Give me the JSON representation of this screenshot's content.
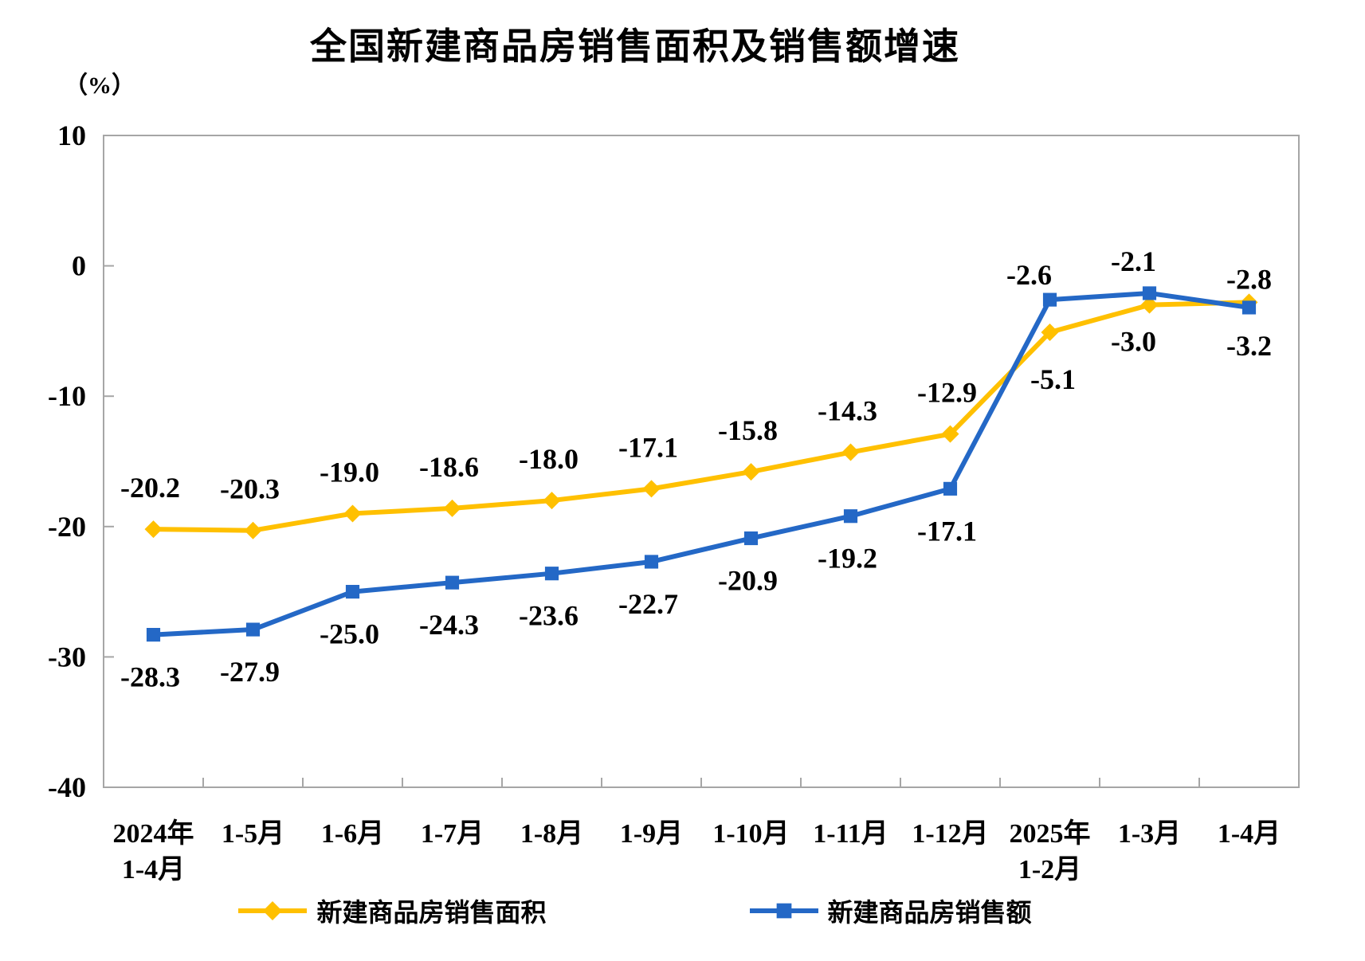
{
  "chart": {
    "title": "全国新建商品房销售面积及销售额增速",
    "y_axis_unit": "（%）"
  },
  "chart_data": {
    "type": "line",
    "title": "全国新建商品房销售面积及销售额增速",
    "ylabel": "（%）",
    "ylim": [
      -40,
      10
    ],
    "y_ticks": [
      10,
      0,
      -10,
      -20,
      -30,
      -40
    ],
    "grid": false,
    "legend_position": "bottom",
    "axis_color": "#A6A6A6",
    "label_color": "#000000",
    "categories": [
      "2024年\n1-4月",
      "1-5月",
      "1-6月",
      "1-7月",
      "1-8月",
      "1-9月",
      "1-10月",
      "1-11月",
      "1-12月",
      "2025年\n1-2月",
      "1-3月",
      "1-4月"
    ],
    "series": [
      {
        "name": "新建商品房销售面积",
        "color": "#FFC000",
        "marker": "diamond",
        "values": [
          -20.2,
          -20.3,
          -19.0,
          -18.6,
          -18.0,
          -17.1,
          -15.8,
          -14.3,
          -12.9,
          -5.1,
          -3.0,
          -2.8
        ],
        "labels": [
          "-20.2",
          "-20.3",
          "-19.0",
          "-18.6",
          "-18.0",
          "-17.1",
          "-15.8",
          "-14.3",
          "-12.9",
          "-5.1",
          "-3.0",
          "-2.8"
        ]
      },
      {
        "name": "新建商品房销售额",
        "color": "#2468C6",
        "marker": "square",
        "values": [
          -28.3,
          -27.9,
          -25.0,
          -24.3,
          -23.6,
          -22.7,
          -20.9,
          -19.2,
          -17.1,
          -2.6,
          -2.1,
          -3.2
        ],
        "labels": [
          "-28.3",
          "-27.9",
          "-25.0",
          "-24.3",
          "-23.6",
          "-22.7",
          "-20.9",
          "-19.2",
          "-17.1",
          "-2.6",
          "-2.1",
          "-3.2"
        ]
      }
    ]
  }
}
